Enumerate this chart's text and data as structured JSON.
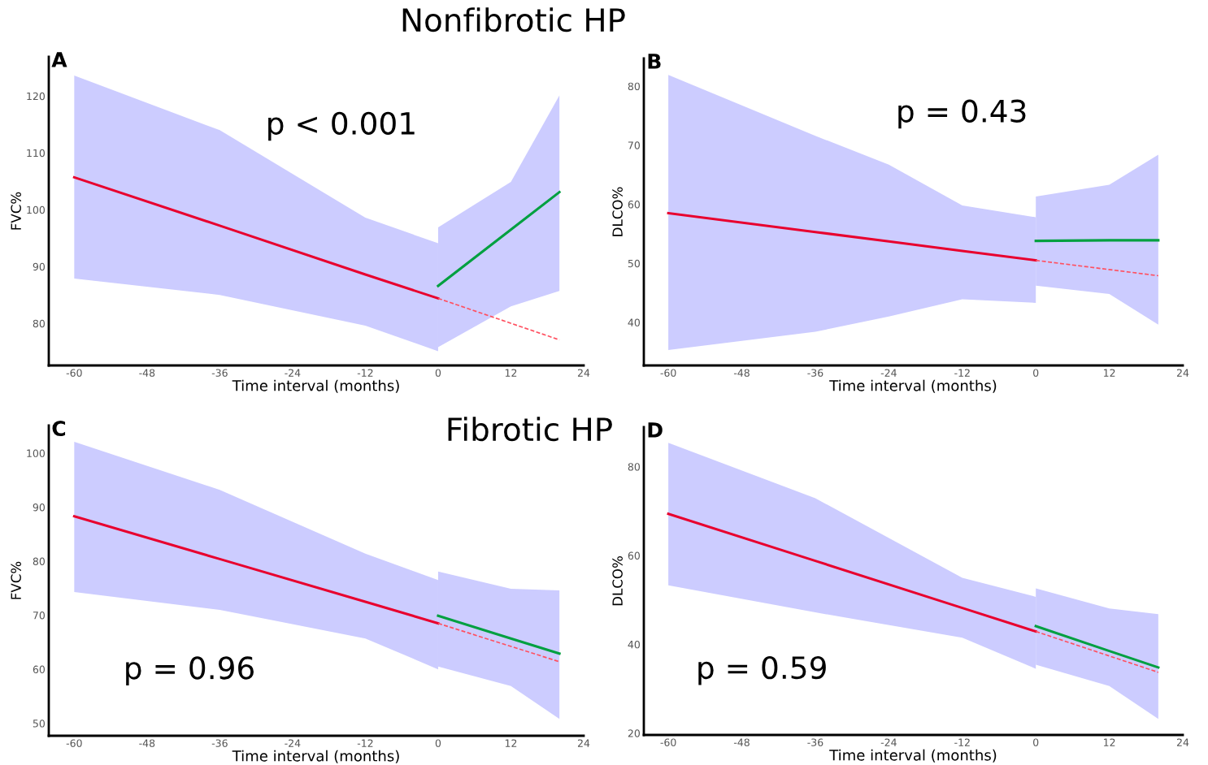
{
  "chart_data": [
    {
      "type": "line",
      "title": "Nonfibrotic HP",
      "xlabel": "Time interval (months)",
      "ylabel": "FVC%",
      "annotations": [
        "A",
        "p < 0.001"
      ],
      "xlim": [
        -64.2,
        24
      ],
      "xticks": [
        -60,
        -48,
        -36,
        -24,
        -12,
        0,
        12,
        24
      ],
      "ylim": [
        72.6,
        126.9
      ],
      "yticks": [
        80,
        90,
        100,
        110,
        120
      ],
      "grid": false,
      "legend": false,
      "series": [
        {
          "color": "#e8002e",
          "line_style": "solid",
          "x": [
            -60,
            -36,
            -12,
            0
          ],
          "values": [
            105.7,
            97.2,
            88.6,
            84.4
          ],
          "lower": [
            87.9,
            85,
            79.6,
            75.1
          ],
          "upper": [
            123.6,
            114,
            98.6,
            94.1
          ]
        },
        {
          "color": "#00a040",
          "line_style": "solid",
          "x": [
            0,
            12,
            20
          ],
          "values": [
            86.6,
            96.5,
            103.1
          ],
          "lower": [
            75.8,
            83,
            85.7
          ],
          "upper": [
            96.9,
            104.9,
            120.1
          ]
        },
        {
          "color": "#ff5060",
          "line_style": "dashed",
          "x": [
            0,
            20
          ],
          "values": [
            84.4,
            77.1
          ]
        }
      ]
    },
    {
      "type": "line",
      "xlabel": "Time interval (months)",
      "ylabel": "DLCO%",
      "annotations": [
        "B",
        "p = 0.43"
      ],
      "xlim": [
        -64,
        24
      ],
      "xticks": [
        -60,
        -48,
        -36,
        -24,
        -12,
        0,
        12,
        24
      ],
      "ylim": [
        32.7,
        84.7
      ],
      "yticks": [
        40,
        50,
        60,
        70,
        80
      ],
      "grid": false,
      "legend": false,
      "series": [
        {
          "color": "#e8002e",
          "line_style": "solid",
          "x": [
            -60,
            -36,
            -24,
            -12,
            0
          ],
          "values": [
            58.5,
            55.3,
            53.7,
            52.1,
            50.5
          ],
          "lower": [
            35.3,
            38.4,
            41,
            43.9,
            43.3
          ],
          "upper": [
            81.9,
            71.6,
            66.7,
            59.8,
            57.8
          ]
        },
        {
          "color": "#00a040",
          "line_style": "solid",
          "x": [
            0,
            12,
            20
          ],
          "values": [
            53.8,
            53.9,
            53.9
          ],
          "lower": [
            46.2,
            44.8,
            39.6
          ],
          "upper": [
            61.3,
            63.3,
            68.4
          ]
        },
        {
          "color": "#ff5060",
          "line_style": "dashed",
          "x": [
            0,
            20
          ],
          "values": [
            50.5,
            47.9
          ]
        }
      ]
    },
    {
      "type": "line",
      "title": "Fibrotic HP",
      "xlabel": "Time interval (months)",
      "ylabel": "FVC%",
      "annotations": [
        "C",
        "p = 0.96"
      ],
      "xlim": [
        -64.2,
        24
      ],
      "xticks": [
        -60,
        -48,
        -36,
        -24,
        -12,
        0,
        12,
        24
      ],
      "ylim": [
        47.7,
        105.1
      ],
      "yticks": [
        50,
        60,
        70,
        80,
        90,
        100
      ],
      "grid": false,
      "legend": false,
      "series": [
        {
          "color": "#e8002e",
          "line_style": "solid",
          "x": [
            -60,
            -36,
            -12,
            0
          ],
          "values": [
            88.3,
            80.4,
            72.5,
            68.5
          ],
          "lower": [
            74.3,
            71,
            65.7,
            60
          ],
          "upper": [
            102.1,
            93.2,
            81.4,
            76.5
          ]
        },
        {
          "color": "#00a040",
          "line_style": "solid",
          "x": [
            0,
            12,
            20
          ],
          "values": [
            69.9,
            65.7,
            62.9
          ],
          "lower": [
            60.5,
            56.9,
            50.8
          ],
          "upper": [
            78.1,
            74.9,
            74.6
          ]
        },
        {
          "color": "#ff5060",
          "line_style": "dashed",
          "x": [
            0,
            20
          ],
          "values": [
            68.5,
            61.4
          ]
        }
      ]
    },
    {
      "type": "line",
      "xlabel": "Time interval (months)",
      "ylabel": "DLCO%",
      "annotations": [
        "D",
        "p = 0.59"
      ],
      "xlim": [
        -64,
        24
      ],
      "xticks": [
        -60,
        -48,
        -36,
        -24,
        -12,
        0,
        12,
        24
      ],
      "ylim": [
        19.6,
        88.9
      ],
      "yticks": [
        20,
        40,
        60,
        80
      ],
      "grid": false,
      "legend": false,
      "series": [
        {
          "color": "#e8002e",
          "line_style": "solid",
          "x": [
            -60,
            -36,
            -12,
            0
          ],
          "values": [
            69.4,
            58.8,
            48.2,
            42.9
          ],
          "lower": [
            53.3,
            47.2,
            41.5,
            34.5
          ],
          "upper": [
            85.4,
            72.9,
            55,
            50.7
          ]
        },
        {
          "color": "#00a040",
          "line_style": "solid",
          "x": [
            0,
            12,
            20
          ],
          "values": [
            44.1,
            38.5,
            34.8
          ],
          "lower": [
            35.4,
            30.6,
            23.2
          ],
          "upper": [
            52.6,
            48.1,
            46.8
          ]
        },
        {
          "color": "#ff5060",
          "line_style": "dashed",
          "x": [
            0,
            20
          ],
          "values": [
            42.9,
            33.7
          ]
        }
      ]
    }
  ]
}
